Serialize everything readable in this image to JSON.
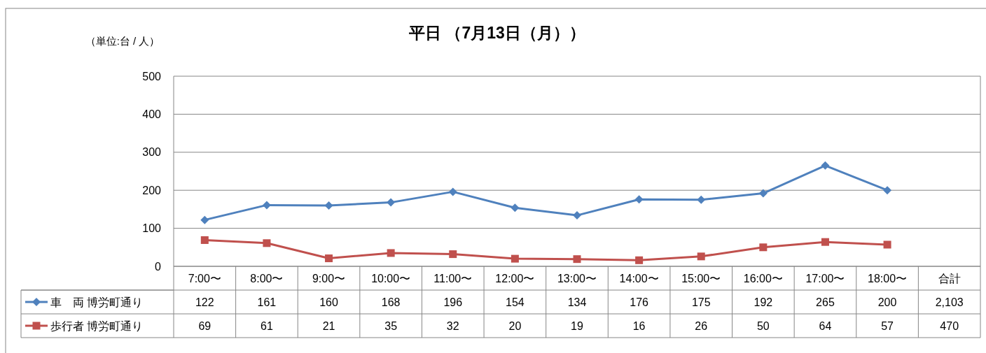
{
  "chart_data": {
    "type": "line",
    "title": "平日 （7月13日（月））",
    "annotations": [
      "（単位:台 / 人）"
    ],
    "categories": [
      "7:00〜",
      "8:00〜",
      "9:00〜",
      "10:00〜",
      "11:00〜",
      "12:00〜",
      "13:00〜",
      "14:00〜",
      "15:00〜",
      "16:00〜",
      "17:00〜",
      "18:00〜",
      "合計"
    ],
    "series": [
      {
        "name": "車　両 博労町通り",
        "color": "#4f81bd",
        "marker": "diamond",
        "values": [
          122,
          161,
          160,
          168,
          196,
          154,
          134,
          176,
          175,
          192,
          265,
          200,
          null
        ],
        "value_labels": [
          "122",
          "161",
          "160",
          "168",
          "196",
          "154",
          "134",
          "176",
          "175",
          "192",
          "265",
          "200",
          "2,103"
        ]
      },
      {
        "name": "歩行者 博労町通り",
        "color": "#c0504d",
        "marker": "square",
        "values": [
          69,
          61,
          21,
          35,
          32,
          20,
          19,
          16,
          26,
          50,
          64,
          57,
          null
        ],
        "value_labels": [
          "69",
          "61",
          "21",
          "35",
          "32",
          "20",
          "19",
          "16",
          "26",
          "50",
          "64",
          "57",
          "470"
        ]
      }
    ],
    "ylim": [
      0,
      500
    ],
    "yticks": [
      0,
      100,
      200,
      300,
      400,
      500
    ],
    "grid": "y",
    "legend": "bottom left"
  }
}
